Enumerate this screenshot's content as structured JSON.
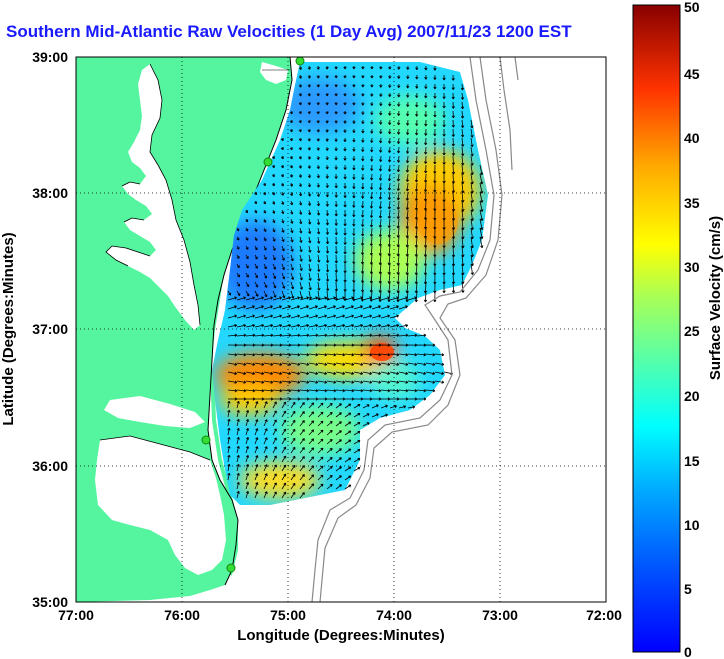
{
  "title": "Southern Mid-Atlantic Raw Velocities (1 Day Avg) 2007/11/23 1200 EST",
  "map": {
    "xlabel": "Longitude (Degrees:Minutes)",
    "ylabel": "Latitude (Degrees:Minutes)",
    "x_ticks": [
      "77:00",
      "76:00",
      "75:00",
      "74:00",
      "73:00",
      "72:00"
    ],
    "y_ticks": [
      "39:00",
      "38:00",
      "37:00",
      "36:00",
      "35:00"
    ],
    "lon_range": [
      -77,
      -72
    ],
    "lat_range": [
      35,
      39
    ],
    "grid": "dotted",
    "land_color": "#55f5a0",
    "arrow_color": "#000000",
    "bathymetry_color": "#888888",
    "station_color": "#33dd33"
  },
  "colorbar": {
    "label": "Surface Velocity (cm/s)",
    "ticks": [
      "0",
      "5",
      "10",
      "15",
      "20",
      "25",
      "30",
      "35",
      "40",
      "45",
      "50"
    ],
    "range": [
      0,
      50
    ],
    "colormap": "jet"
  }
}
